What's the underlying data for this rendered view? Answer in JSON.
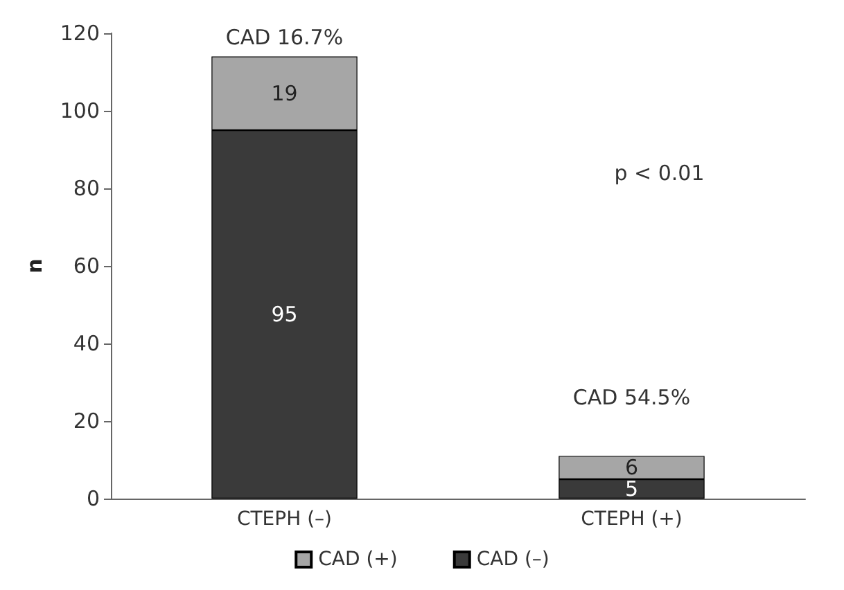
{
  "chart_data": {
    "type": "bar",
    "stacked": true,
    "ylabel": "n",
    "categories": [
      "CTEPH (–)",
      "CTEPH (+)"
    ],
    "series": [
      {
        "name": "CAD (–)",
        "color": "#3a3a3a",
        "values": [
          95,
          5
        ]
      },
      {
        "name": "CAD (+)",
        "color": "#a6a6a6",
        "values": [
          19,
          6
        ]
      }
    ],
    "ylim": [
      0,
      120
    ],
    "yticks": [
      0,
      20,
      40,
      60,
      80,
      100,
      120
    ],
    "grid": false,
    "legend": "bottom",
    "data_labels": true,
    "annotations": [
      "CAD 16.7%",
      "CAD 54.5%",
      "p < 0.01"
    ]
  }
}
